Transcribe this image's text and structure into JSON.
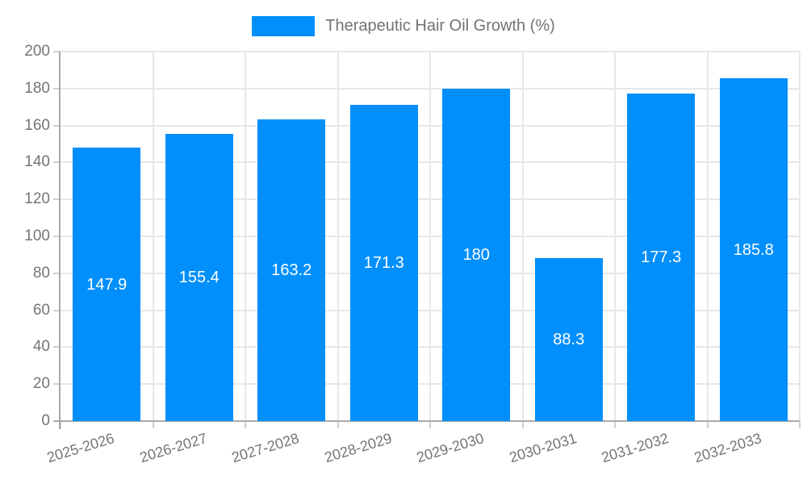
{
  "legend": {
    "label": "Therapeutic Hair Oil Growth (%)"
  },
  "chart_data": {
    "type": "bar",
    "title": "Therapeutic Hair Oil Growth (%)",
    "series_name": "Therapeutic Hair Oil Growth (%)",
    "categories": [
      "2025-2026",
      "2026-2027",
      "2027-2028",
      "2028-2029",
      "2029-2030",
      "2030-2031",
      "2031-2032",
      "2032-2033"
    ],
    "values": [
      147.9,
      155.4,
      163.2,
      171.3,
      180,
      88.3,
      177.3,
      185.8
    ],
    "value_labels": [
      "147.9",
      "155.4",
      "163.2",
      "171.3",
      "180",
      "88.3",
      "177.3",
      "185.8"
    ],
    "ytick_labels": [
      "0",
      "20",
      "40",
      "60",
      "80",
      "100",
      "120",
      "140",
      "160",
      "180",
      "200"
    ],
    "ylim": [
      0,
      200
    ],
    "ytick_step": 20,
    "grid": true,
    "legend_position": "top",
    "x_label_rotation_deg": -17,
    "colors": {
      "bar": "#008FFB",
      "value_label": "#ffffff",
      "axis_label": "#757575",
      "legend_label": "#737373",
      "gridline": "#e7e7e7",
      "axis_line": "#a9a9a9",
      "tick": "#cfcfcf"
    }
  }
}
